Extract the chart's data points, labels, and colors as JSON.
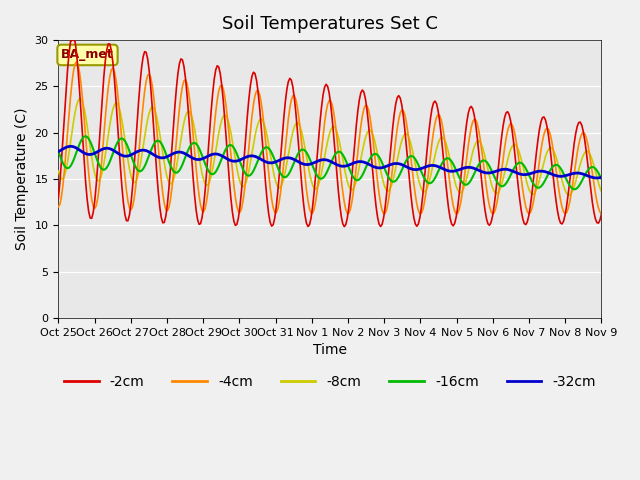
{
  "title": "Soil Temperatures Set C",
  "xlabel": "Time",
  "ylabel": "Soil Temperature (C)",
  "ylim": [
    0,
    30
  ],
  "tick_labels": [
    "Oct 25",
    "Oct 26",
    "Oct 27",
    "Oct 28",
    "Oct 29",
    "Oct 30",
    "Oct 31",
    "Nov 1",
    "Nov 2",
    "Nov 3",
    "Nov 4",
    "Nov 5",
    "Nov 6",
    "Nov 7",
    "Nov 8",
    "Nov 9"
  ],
  "colors": {
    "-2cm": "#dd0000",
    "-4cm": "#ff8800",
    "-8cm": "#cccc00",
    "-16cm": "#00bb00",
    "-32cm": "#0000cc"
  },
  "legend_labels": [
    "-2cm",
    "-4cm",
    "-8cm",
    "-16cm",
    "-32cm"
  ],
  "annotation": "BA_met",
  "background_color": "#e8e8e8",
  "fig_background": "#f0f0f0",
  "title_fontsize": 13,
  "axis_fontsize": 10,
  "tick_fontsize": 8,
  "legend_fontsize": 10
}
